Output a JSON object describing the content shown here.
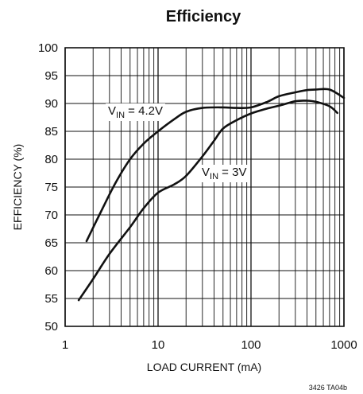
{
  "chart_data": {
    "type": "line",
    "title": "Efficiency",
    "xlabel": "LOAD CURRENT (mA)",
    "ylabel": "EFFICIENCY (%)",
    "x_scale": "log",
    "xlim": [
      1,
      1000
    ],
    "ylim": [
      50,
      100
    ],
    "x_ticks": [
      1,
      10,
      100,
      1000
    ],
    "x_tick_labels": [
      "1",
      "10",
      "100",
      "1000"
    ],
    "y_ticks": [
      50,
      55,
      60,
      65,
      70,
      75,
      80,
      85,
      90,
      95,
      100
    ],
    "y_tick_labels": [
      "50",
      "55",
      "60",
      "65",
      "70",
      "75",
      "80",
      "85",
      "90",
      "95",
      "100"
    ],
    "grid": true,
    "series": [
      {
        "label_main": "V",
        "label_sub": "IN",
        "label_rest": " = 4.2V",
        "x": [
          1.7,
          2.5,
          3.5,
          5,
          7,
          10,
          15,
          20,
          30,
          50,
          70,
          100,
          150,
          200,
          300,
          400,
          500,
          700,
          1000
        ],
        "y": [
          65.3,
          71.0,
          75.8,
          80.0,
          82.8,
          85.0,
          87.2,
          88.5,
          89.2,
          89.3,
          89.2,
          89.3,
          90.3,
          91.3,
          92.0,
          92.4,
          92.5,
          92.5,
          91.0
        ]
      },
      {
        "label_main": "V",
        "label_sub": "IN",
        "label_rest": " = 3V",
        "x": [
          1.4,
          2,
          3,
          5,
          7,
          10,
          15,
          20,
          30,
          40,
          50,
          70,
          100,
          150,
          200,
          300,
          400,
          500,
          700,
          850
        ],
        "y": [
          54.7,
          58.5,
          63.0,
          67.8,
          71.2,
          74.0,
          75.5,
          77.0,
          80.5,
          83.3,
          85.5,
          87.0,
          88.2,
          89.1,
          89.6,
          90.4,
          90.5,
          90.3,
          89.5,
          88.3
        ]
      }
    ]
  },
  "figure_ref": "3426 TA04b"
}
